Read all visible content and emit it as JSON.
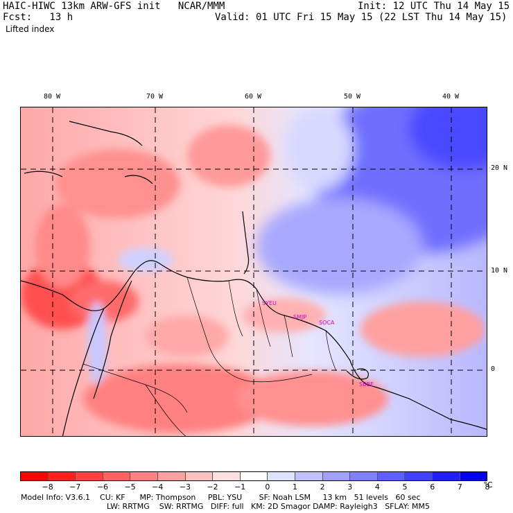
{
  "header": {
    "title_left": "HAIC-HIWC 13km ARW-GFS init   NCAR/MMM",
    "init": "Init: 12 UTC Thu 14 May 15",
    "fcst": "Fcst:   13 h",
    "valid": "Valid: 01 UTC Fri 15 May 15 (22 LST Thu 14 May 15)",
    "field": "Lifted index"
  },
  "axes": {
    "lon_labels": [
      "80 W",
      "70 W",
      "60 W",
      "50 W",
      "40 W"
    ],
    "lat_labels": [
      "20 N",
      "10 N",
      "0"
    ]
  },
  "stations": [
    "SYEU",
    "SMJP",
    "SOCA",
    "SBBE"
  ],
  "colorbar": {
    "labels": [
      "−8",
      "−7",
      "−6",
      "−5",
      "−4",
      "−3",
      "−2",
      "−1",
      "0",
      "1",
      "2",
      "3",
      "4",
      "5",
      "6",
      "7",
      "8"
    ],
    "unit": "°C",
    "colors": [
      "#ff0000",
      "#ff2020",
      "#ff4040",
      "#ff6060",
      "#ff8080",
      "#ffa0a0",
      "#ffc0c0",
      "#ffe0e0",
      "#ffffff",
      "#e0e0ff",
      "#c0c0ff",
      "#a0a0ff",
      "#8080ff",
      "#6060ff",
      "#4040ff",
      "#2020ff",
      "#0000ee"
    ]
  },
  "footer": {
    "line1": "Model Info: V3.6.1    CU: KF      MP: Thompson     PBL: YSU       SF: Noah LSM     13 km   51 levels   60 sec",
    "line2": "LW: RRTMG    SW: RRTMG   DIFF: full   KM: 2D Smagor DAMP: Rayleigh3   SFLAY: MM5"
  }
}
